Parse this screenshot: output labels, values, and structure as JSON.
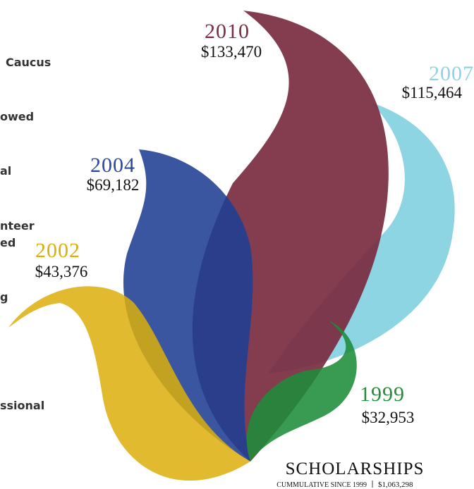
{
  "title": "SCHOLARSHIPS",
  "subtitle": "CUMMULATIVE SINCE 1999",
  "total": "$1,063,298",
  "flames": [
    {
      "year": "2010",
      "amount": "$133,470"
    },
    {
      "year": "2007",
      "amount": "$115,464"
    },
    {
      "year": "2004",
      "amount": "$69,182"
    },
    {
      "year": "2002",
      "amount": "$43,376"
    },
    {
      "year": "1999",
      "amount": "$32,953"
    }
  ],
  "side_labels": [
    "Caucus",
    "owed",
    "al",
    "nteer",
    "ed",
    "g",
    "ssional"
  ]
}
